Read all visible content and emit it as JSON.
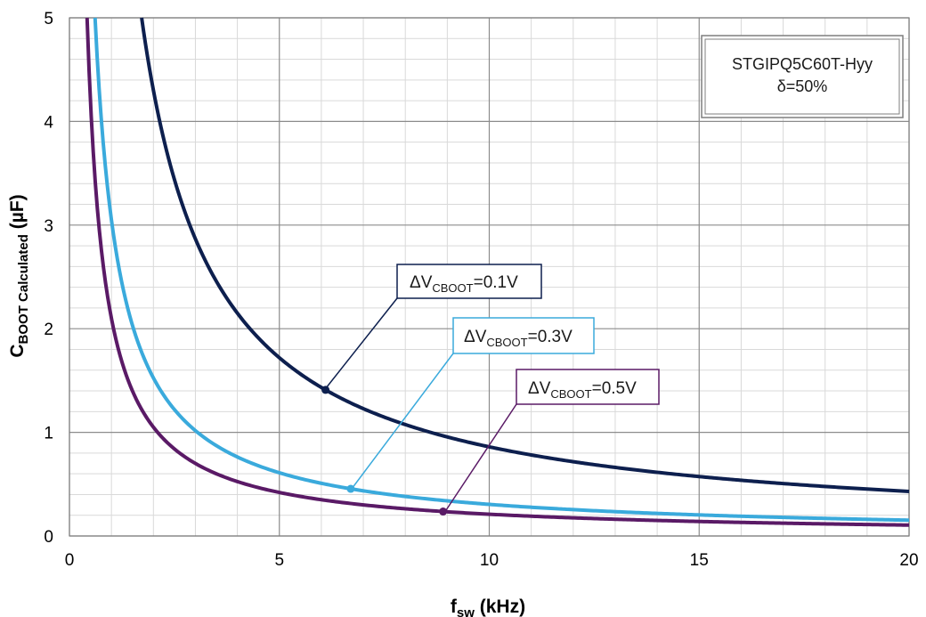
{
  "chart_data": {
    "type": "line",
    "xlabel": {
      "main": "f",
      "sub": "sw",
      "unit": " (kHz)"
    },
    "ylabel": {
      "main": "C",
      "sub": "BOOT Calculated",
      "unit": " (µF)"
    },
    "xlim": [
      0,
      20
    ],
    "ylim": [
      0,
      5
    ],
    "x_ticks": [
      0,
      5,
      10,
      15,
      20
    ],
    "y_ticks": [
      0,
      1,
      2,
      3,
      4,
      5
    ],
    "grid": true,
    "legend_box": {
      "line1": "STGIPQ5C60T-Hyy",
      "line2": "δ=50%",
      "placement": "top-right"
    },
    "series": [
      {
        "label_main": "ΔV",
        "label_sub": "CBOOT",
        "label_tail": "=0.1V",
        "color": "#0d1f4e",
        "k": 8.6,
        "marker_x": 6.1
      },
      {
        "label_main": "ΔV",
        "label_sub": "CBOOT",
        "label_tail": "=0.3V",
        "color": "#3aaadc",
        "k": 3.05,
        "marker_x": 6.7
      },
      {
        "label_main": "ΔV",
        "label_sub": "CBOOT",
        "label_tail": "=0.5V",
        "color": "#5a1a66",
        "k": 2.1,
        "marker_x": 8.9
      }
    ]
  }
}
